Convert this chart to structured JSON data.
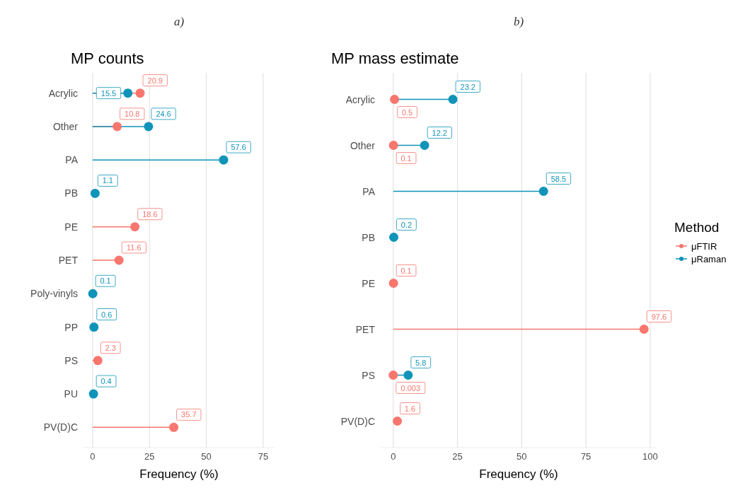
{
  "chart_data": [
    {
      "type": "lollipop",
      "orientation": "horizontal",
      "title": "MP counts",
      "xlabel": "Frequency (%)",
      "annotations": [
        "a)"
      ],
      "categories": [
        "Acrylic",
        "Other",
        "PA",
        "PB",
        "PE",
        "PET",
        "Poly-vinyls",
        "PP",
        "PS",
        "PU",
        "PV(D)C"
      ],
      "series": [
        {
          "color": "#f8766d",
          "values": [
            20.9,
            10.8,
            null,
            null,
            18.6,
            11.6,
            null,
            null,
            2.3,
            null,
            35.7
          ]
        },
        {
          "color": "#0e94b8",
          "values": [
            15.5,
            24.6,
            57.6,
            1.1,
            null,
            null,
            0.1,
            0.6,
            null,
            0.4,
            null
          ]
        }
      ],
      "xlim": [
        -4,
        80
      ],
      "xticks": [
        0,
        25,
        50,
        75
      ],
      "grid": "x",
      "data_labels": true,
      "legend": false
    },
    {
      "type": "lollipop",
      "orientation": "horizontal",
      "title": "MP mass estimate",
      "xlabel": "Frequency (%)",
      "annotations": [
        "b)"
      ],
      "categories": [
        "Acrylic",
        "Other",
        "PA",
        "PB",
        "PE",
        "PET",
        "PS",
        "PV(D)C"
      ],
      "series": [
        {
          "name": "μFTIR",
          "color": "#f8766d",
          "values": [
            0.5,
            0.1,
            null,
            null,
            0.1,
            97.6,
            0.003,
            1.6
          ]
        },
        {
          "name": "μRaman",
          "color": "#0e94b8",
          "values": [
            23.2,
            12.2,
            58.5,
            0.2,
            null,
            null,
            5.8,
            null
          ]
        }
      ],
      "xlim": [
        -4.9,
        102.5
      ],
      "xticks": [
        0,
        25,
        50,
        75,
        100
      ],
      "grid": "x",
      "data_labels": true,
      "legend": "right",
      "legend_title": "Method"
    }
  ]
}
